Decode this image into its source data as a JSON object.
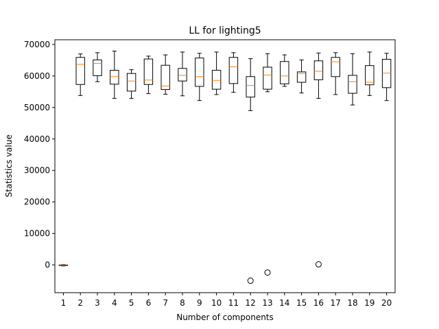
{
  "chart_data": {
    "type": "box",
    "title": "LL for lighting5",
    "xlabel": "Number of components",
    "ylabel": "Statistics value",
    "categories": [
      "1",
      "2",
      "3",
      "4",
      "5",
      "6",
      "7",
      "8",
      "9",
      "10",
      "11",
      "12",
      "13",
      "14",
      "15",
      "16",
      "17",
      "18",
      "19",
      "20"
    ],
    "ylim": [
      -8800,
      71500
    ],
    "yticks": [
      0,
      10000,
      20000,
      30000,
      40000,
      50000,
      60000,
      70000
    ],
    "ytick_labels": [
      "0",
      "10000",
      "20000",
      "30000",
      "40000",
      "50000",
      "60000",
      "70000"
    ],
    "grid": false,
    "colors": {
      "box": "#000000",
      "median": "#ff7f0e",
      "outlier": "#000000"
    },
    "boxes": [
      {
        "category": "1",
        "whisker_low": -300,
        "q1": -200,
        "median": -100,
        "q3": 0,
        "whisker_high": 100,
        "outliers": []
      },
      {
        "category": "2",
        "whisker_low": 53800,
        "q1": 57300,
        "median": 63700,
        "q3": 65900,
        "whisker_high": 67000,
        "outliers": []
      },
      {
        "category": "3",
        "whisker_low": 58200,
        "q1": 60100,
        "median": 64000,
        "q3": 65100,
        "whisker_high": 67400,
        "outliers": []
      },
      {
        "category": "4",
        "whisker_low": 52900,
        "q1": 57400,
        "median": 59800,
        "q3": 61800,
        "whisker_high": 67900,
        "outliers": []
      },
      {
        "category": "5",
        "whisker_low": 52900,
        "q1": 55200,
        "median": 58400,
        "q3": 60800,
        "whisker_high": 62000,
        "outliers": []
      },
      {
        "category": "6",
        "whisker_low": 54400,
        "q1": 57300,
        "median": 58700,
        "q3": 65400,
        "whisker_high": 66300,
        "outliers": []
      },
      {
        "category": "7",
        "whisker_low": 54200,
        "q1": 55700,
        "median": 56800,
        "q3": 63400,
        "whisker_high": 66700,
        "outliers": []
      },
      {
        "category": "8",
        "whisker_low": 53700,
        "q1": 58400,
        "median": 60200,
        "q3": 62400,
        "whisker_high": 67600,
        "outliers": []
      },
      {
        "category": "9",
        "whisker_low": 52200,
        "q1": 56700,
        "median": 59800,
        "q3": 65700,
        "whisker_high": 67200,
        "outliers": []
      },
      {
        "category": "10",
        "whisker_low": 54100,
        "q1": 55800,
        "median": 58600,
        "q3": 61800,
        "whisker_high": 67600,
        "outliers": []
      },
      {
        "category": "11",
        "whisker_low": 54800,
        "q1": 57600,
        "median": 62900,
        "q3": 65900,
        "whisker_high": 67400,
        "outliers": []
      },
      {
        "category": "12",
        "whisker_low": 49000,
        "q1": 53300,
        "median": 57000,
        "q3": 59800,
        "whisker_high": 65500,
        "outliers": [
          -5000
        ]
      },
      {
        "category": "13",
        "whisker_low": 55000,
        "q1": 55800,
        "median": 60300,
        "q3": 62800,
        "whisker_high": 67100,
        "outliers": [
          -2400
        ]
      },
      {
        "category": "14",
        "whisker_low": 56700,
        "q1": 57500,
        "median": 60000,
        "q3": 64600,
        "whisker_high": 66700,
        "outliers": []
      },
      {
        "category": "15",
        "whisker_low": 54600,
        "q1": 58000,
        "median": 60800,
        "q3": 61300,
        "whisker_high": 65100,
        "outliers": []
      },
      {
        "category": "16",
        "whisker_low": 52900,
        "q1": 58800,
        "median": 61500,
        "q3": 64800,
        "whisker_high": 67300,
        "outliers": [
          200
        ]
      },
      {
        "category": "17",
        "whisker_low": 54100,
        "q1": 59800,
        "median": 64500,
        "q3": 65900,
        "whisker_high": 67400,
        "outliers": []
      },
      {
        "category": "18",
        "whisker_low": 50800,
        "q1": 54500,
        "median": 58200,
        "q3": 60200,
        "whisker_high": 67100,
        "outliers": []
      },
      {
        "category": "19",
        "whisker_low": 53800,
        "q1": 57200,
        "median": 58000,
        "q3": 63300,
        "whisker_high": 67600,
        "outliers": []
      },
      {
        "category": "20",
        "whisker_low": 52200,
        "q1": 56300,
        "median": 60900,
        "q3": 65300,
        "whisker_high": 67200,
        "outliers": []
      }
    ]
  }
}
